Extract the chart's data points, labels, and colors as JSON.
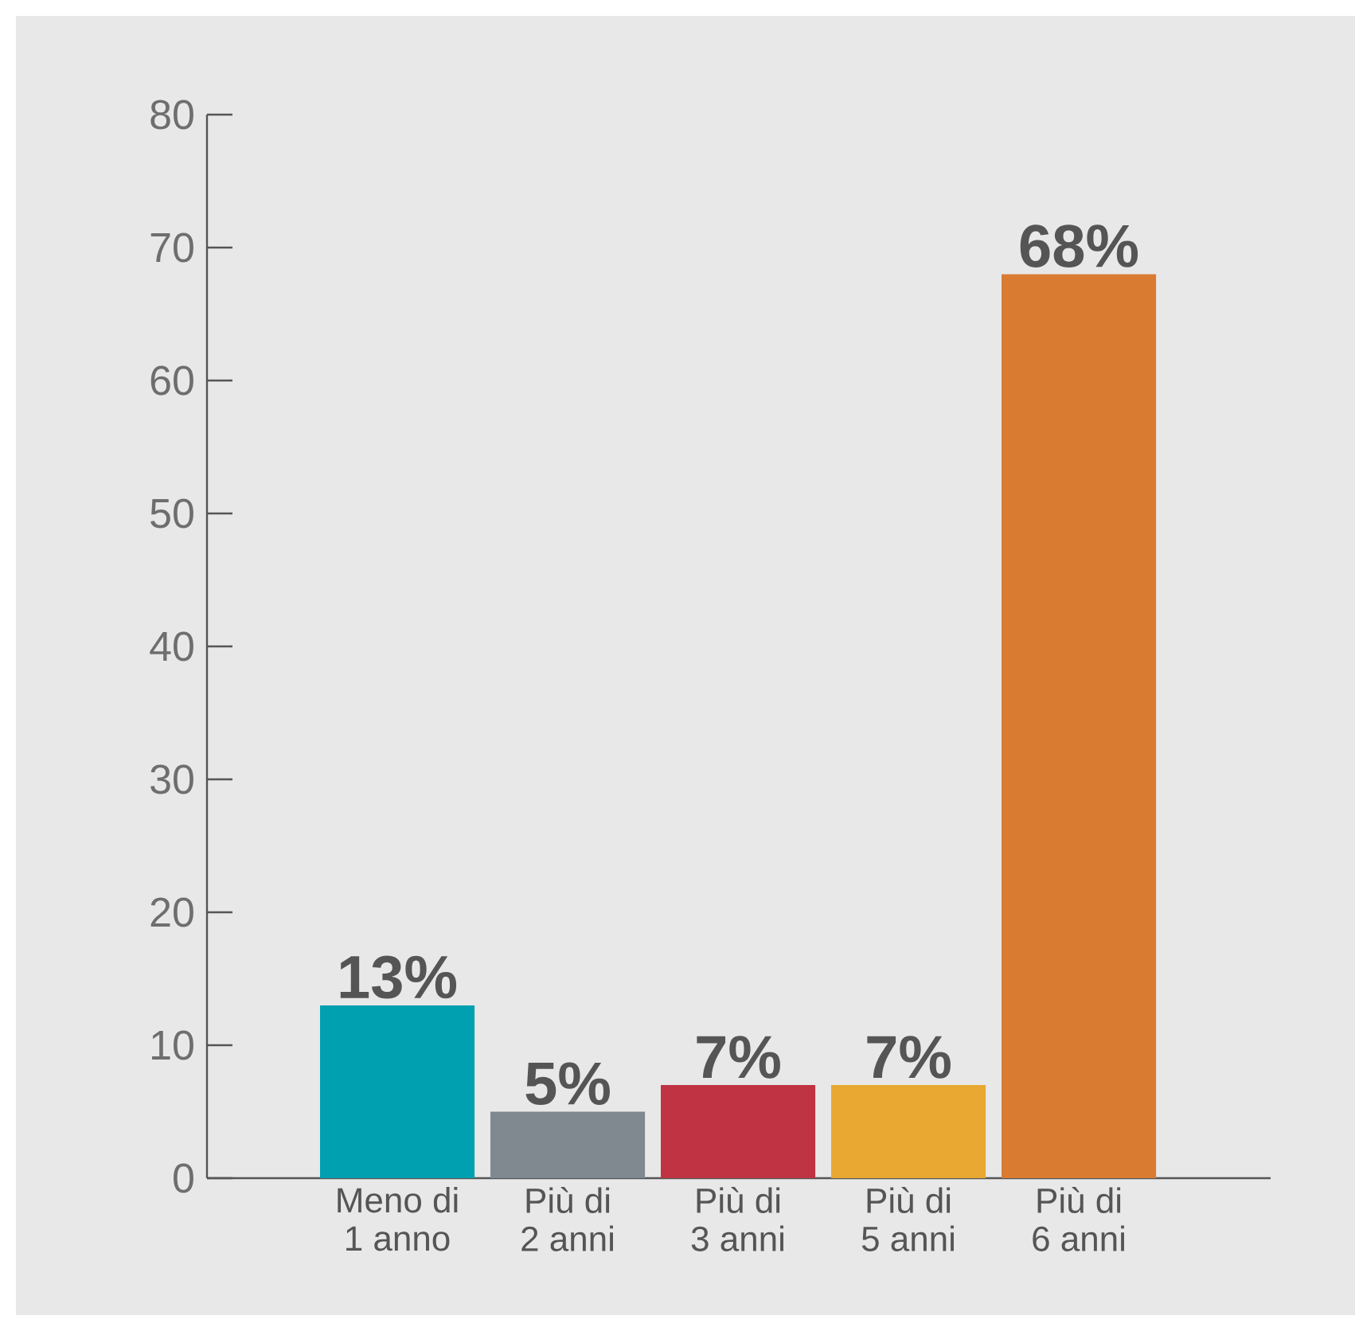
{
  "chart_data": {
    "type": "bar",
    "categories": [
      "Meno di 1 anno",
      "Più di 2 anni",
      "Più di 3 anni",
      "Più di 5 anni",
      "Più di 6 anni"
    ],
    "values": [
      13,
      5,
      7,
      7,
      68
    ],
    "colors": [
      "#00a0b0",
      "#808890",
      "#c03342",
      "#e8a832",
      "#da7b32"
    ],
    "value_labels": [
      "13%",
      "5%",
      "7%",
      "7%",
      "68%"
    ],
    "ylim": [
      0,
      80
    ],
    "yticks": [
      0,
      10,
      20,
      30,
      40,
      50,
      60,
      70,
      80
    ]
  }
}
